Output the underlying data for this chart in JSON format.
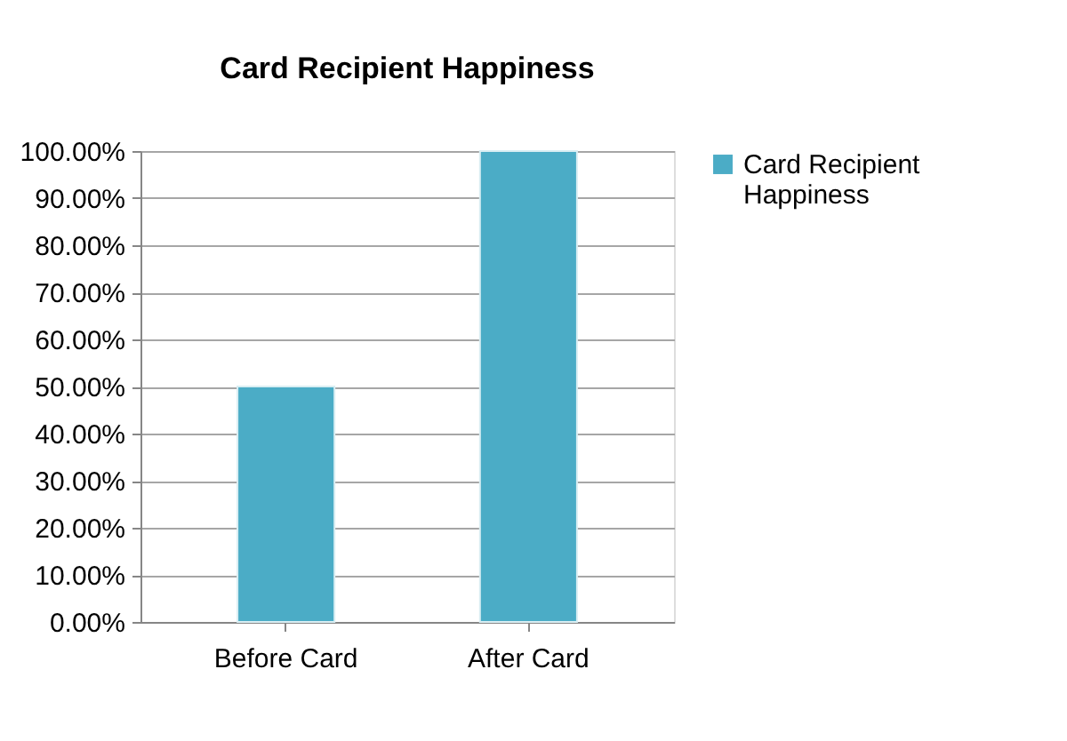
{
  "chart_data": {
    "type": "bar",
    "title": "Card Recipient Happiness",
    "categories": [
      "Before Card",
      "After Card"
    ],
    "series": [
      {
        "name": "Card Recipient Happiness",
        "color": "#4bacc6",
        "values": [
          50,
          100
        ]
      }
    ],
    "ylim": [
      0,
      100
    ],
    "yticks": [
      {
        "value": 0,
        "label": "0.00%"
      },
      {
        "value": 10,
        "label": "10.00%"
      },
      {
        "value": 20,
        "label": "20.00%"
      },
      {
        "value": 30,
        "label": "30.00%"
      },
      {
        "value": 40,
        "label": "40.00%"
      },
      {
        "value": 50,
        "label": "50.00%"
      },
      {
        "value": 60,
        "label": "60.00%"
      },
      {
        "value": 70,
        "label": "70.00%"
      },
      {
        "value": 80,
        "label": "80.00%"
      },
      {
        "value": 90,
        "label": "90.00%"
      },
      {
        "value": 100,
        "label": "100.00%"
      }
    ],
    "grid": "y",
    "legend": "right"
  }
}
